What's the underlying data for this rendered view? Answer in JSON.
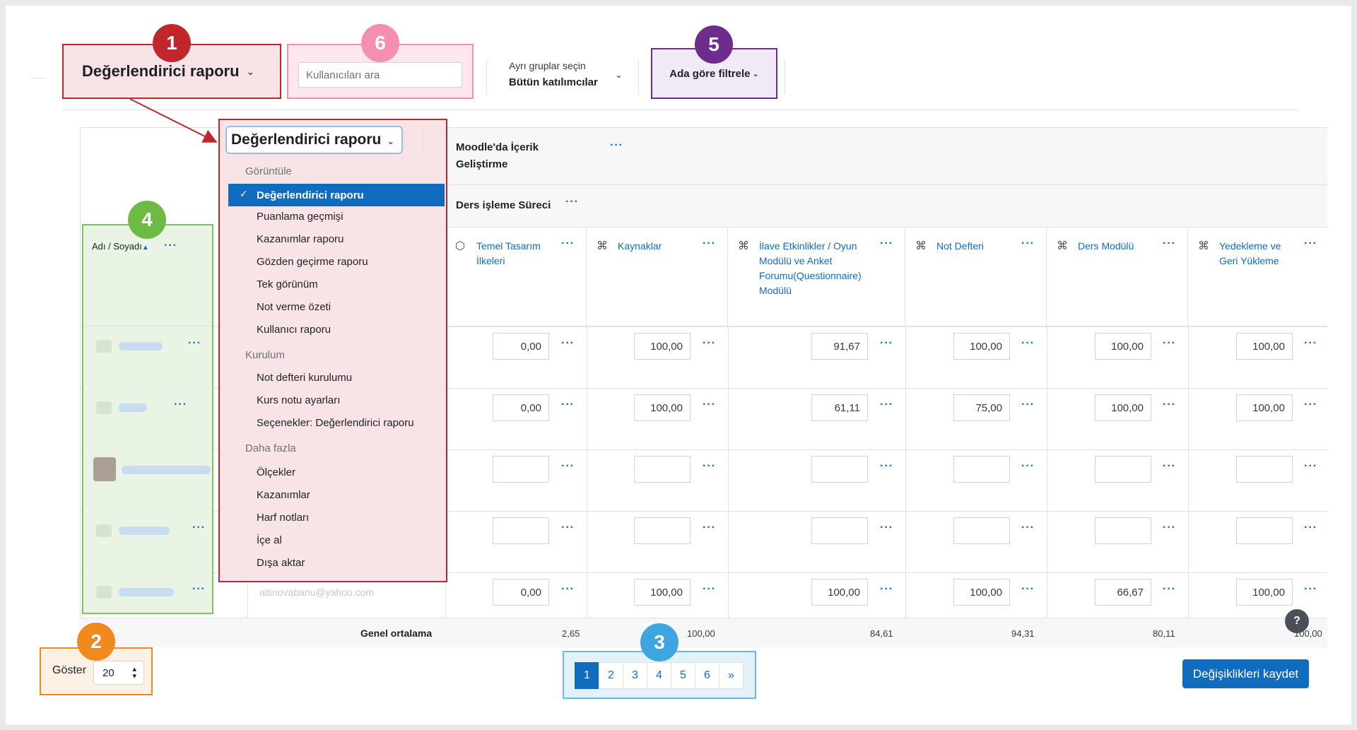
{
  "toolbar": {
    "report_select_label": "Değerlendirici raporu",
    "search_placeholder": "Kullanıcıları ara",
    "group_label": "Ayrı gruplar seçin",
    "group_value": "Bütün katılımcılar",
    "name_filter_label": "Ada göre filtrele"
  },
  "badges": [
    "1",
    "2",
    "3",
    "4",
    "5",
    "6"
  ],
  "badge_colors": {
    "1": "#c0272d",
    "2": "#f08a1e",
    "3": "#3da5e0",
    "4": "#6dbb45",
    "5": "#6e2c8c",
    "6": "#f48fb1"
  },
  "table": {
    "course_name": "Moodle'da İçerik Geliştirme",
    "category_name": "Ders işleme Süreci",
    "name_header": "Adı / Soyadı",
    "columns": [
      {
        "title": "Temel Tasarım İlkeleri",
        "icon": "box-icon"
      },
      {
        "title": "Kaynaklar",
        "icon": "module-icon"
      },
      {
        "title": "İlave Etkinlikler / Oyun Modülü ve Anket Forumu(Questionnaire) Modülü",
        "icon": "module-icon"
      },
      {
        "title": "Not Defteri",
        "icon": "module-icon"
      },
      {
        "title": "Ders Modülü",
        "icon": "module-icon"
      },
      {
        "title": "Yedekleme ve Geri Yükleme",
        "icon": "module-icon"
      }
    ],
    "rows": [
      [
        "0,00",
        "100,00",
        "91,67",
        "100,00",
        "100,00",
        "100,00"
      ],
      [
        "0,00",
        "100,00",
        "61,11",
        "75,00",
        "100,00",
        "100,00"
      ],
      [
        "",
        "",
        "",
        "",
        "",
        ""
      ],
      [
        "",
        "",
        "",
        "",
        "",
        ""
      ],
      [
        "0,00",
        "100,00",
        "100,00",
        "100,00",
        "66,67",
        "100,00"
      ]
    ],
    "last_row_email": "altinovabanu@yahoo.com",
    "average_label": "Genel ortalama",
    "averages": [
      "2,65",
      "100,00",
      "84,61",
      "94,31",
      "80,11",
      "100,00"
    ]
  },
  "dropdown": {
    "title": "Değerlendirici raporu",
    "sections": [
      {
        "label": "Görüntüle",
        "items": [
          "Değerlendirici raporu",
          "Puanlama geçmişi",
          "Kazanımlar raporu",
          "Gözden geçirme raporu",
          "Tek görünüm",
          "Not verme özeti",
          "Kullanıcı raporu"
        ]
      },
      {
        "label": "Kurulum",
        "items": [
          "Not defteri kurulumu",
          "Kurs notu ayarları",
          "Seçenekler: Değerlendirici raporu"
        ]
      },
      {
        "label": "Daha fazla",
        "items": [
          "Ölçekler",
          "Kazanımlar",
          "Harf notları",
          "İçe al",
          "Dışa aktar"
        ]
      }
    ]
  },
  "footer": {
    "show_label": "Göster",
    "per_page": "20",
    "pages": [
      "1",
      "2",
      "3",
      "4",
      "5",
      "6",
      "»"
    ],
    "active_page": "1",
    "save_label": "Değişiklikleri kaydet",
    "help_label": "?"
  }
}
